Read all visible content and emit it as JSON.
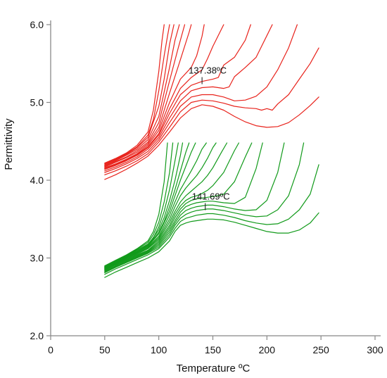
{
  "chart_data": {
    "type": "line",
    "xlabel": "Temperature ºC",
    "ylabel": "Permittivity",
    "xlim": [
      0,
      300
    ],
    "ylim": [
      2.0,
      6.0
    ],
    "xticks": [
      "0",
      "50",
      "100",
      "150",
      "200",
      "250",
      "300"
    ],
    "yticks": [
      "2.0",
      "3.0",
      "4.0",
      "5.0",
      "6.0"
    ],
    "xtick_values": [
      0,
      50,
      100,
      150,
      200,
      250,
      300
    ],
    "ytick_values": [
      2.0,
      3.0,
      4.0,
      5.0,
      6.0
    ],
    "grid": false,
    "legend": "none",
    "colors": {
      "red_family": "#e8221b",
      "green_family": "#119a1a",
      "axis": "#888888"
    },
    "annotations": [
      {
        "text": "137.38ºC",
        "x": 140,
        "y": 5.28
      },
      {
        "text": "141.69ºC",
        "x": 143,
        "y": 3.66
      }
    ],
    "series": [
      {
        "group": "red",
        "color": "#e8221b",
        "x": [
          50,
          60,
          70,
          80,
          90,
          95,
          100,
          103,
          105
        ],
        "y": [
          4.22,
          4.28,
          4.35,
          4.45,
          4.62,
          4.9,
          5.4,
          5.8,
          6.0
        ]
      },
      {
        "group": "red",
        "color": "#e8221b",
        "x": [
          50,
          60,
          70,
          80,
          90,
          95,
          100,
          105,
          108,
          110
        ],
        "y": [
          4.21,
          4.27,
          4.34,
          4.43,
          4.58,
          4.78,
          5.15,
          5.6,
          5.85,
          6.0
        ]
      },
      {
        "group": "red",
        "color": "#e8221b",
        "x": [
          50,
          60,
          70,
          80,
          90,
          100,
          105,
          110,
          114
        ],
        "y": [
          4.2,
          4.26,
          4.33,
          4.42,
          4.55,
          4.95,
          5.3,
          5.75,
          6.0
        ]
      },
      {
        "group": "red",
        "color": "#e8221b",
        "x": [
          50,
          60,
          70,
          80,
          90,
          100,
          110,
          115,
          119
        ],
        "y": [
          4.19,
          4.25,
          4.32,
          4.4,
          4.52,
          4.82,
          5.45,
          5.8,
          6.0
        ]
      },
      {
        "group": "red",
        "color": "#e8221b",
        "x": [
          50,
          60,
          70,
          80,
          90,
          100,
          110,
          118,
          124
        ],
        "y": [
          4.18,
          4.24,
          4.3,
          4.38,
          4.49,
          4.74,
          5.28,
          5.7,
          6.0
        ]
      },
      {
        "group": "red",
        "color": "#e8221b",
        "x": [
          50,
          60,
          70,
          80,
          90,
          100,
          110,
          120,
          128,
          130
        ],
        "y": [
          4.17,
          4.23,
          4.29,
          4.36,
          4.47,
          4.68,
          5.12,
          5.55,
          5.9,
          6.0
        ]
      },
      {
        "group": "red",
        "color": "#e8221b",
        "x": [
          50,
          60,
          70,
          80,
          90,
          100,
          110,
          120,
          130,
          135,
          140,
          142
        ],
        "y": [
          4.16,
          4.21,
          4.27,
          4.34,
          4.45,
          4.64,
          5.0,
          5.3,
          5.45,
          5.6,
          5.85,
          6.0
        ]
      },
      {
        "group": "red",
        "color": "#e8221b",
        "x": [
          50,
          60,
          70,
          80,
          90,
          100,
          110,
          120,
          130,
          140,
          145,
          150,
          160
        ],
        "y": [
          4.15,
          4.2,
          4.26,
          4.33,
          4.43,
          4.6,
          4.92,
          5.18,
          5.32,
          5.42,
          5.56,
          5.72,
          6.0
        ]
      },
      {
        "group": "red",
        "color": "#e8221b",
        "x": [
          50,
          60,
          70,
          80,
          90,
          100,
          110,
          120,
          130,
          140,
          150,
          155,
          160,
          170,
          180,
          185
        ],
        "y": [
          4.14,
          4.19,
          4.25,
          4.32,
          4.42,
          4.58,
          4.86,
          5.1,
          5.22,
          5.27,
          5.3,
          5.32,
          5.48,
          5.58,
          5.8,
          6.0
        ]
      },
      {
        "group": "red",
        "color": "#e8221b",
        "x": [
          50,
          60,
          70,
          80,
          90,
          100,
          110,
          120,
          130,
          140,
          150,
          160,
          165,
          170,
          180,
          190,
          195,
          205
        ],
        "y": [
          4.12,
          4.17,
          4.23,
          4.3,
          4.4,
          4.55,
          4.8,
          5.02,
          5.15,
          5.19,
          5.2,
          5.18,
          5.2,
          5.33,
          5.45,
          5.58,
          5.72,
          6.0
        ]
      },
      {
        "group": "red",
        "color": "#e8221b",
        "x": [
          50,
          60,
          70,
          80,
          90,
          100,
          110,
          120,
          130,
          140,
          150,
          160,
          170,
          180,
          190,
          200,
          210,
          220,
          228
        ],
        "y": [
          4.1,
          4.15,
          4.21,
          4.28,
          4.37,
          4.52,
          4.74,
          4.95,
          5.07,
          5.1,
          5.1,
          5.07,
          5.02,
          5.03,
          5.08,
          5.2,
          5.42,
          5.7,
          6.0
        ]
      },
      {
        "group": "red",
        "color": "#e8221b",
        "x": [
          50,
          60,
          70,
          80,
          90,
          100,
          110,
          120,
          130,
          140,
          150,
          160,
          170,
          180,
          190,
          195,
          200,
          205,
          210,
          220,
          230,
          240,
          248
        ],
        "y": [
          4.07,
          4.12,
          4.18,
          4.25,
          4.34,
          4.49,
          4.68,
          4.88,
          5.0,
          5.03,
          5.02,
          4.99,
          4.95,
          4.93,
          4.92,
          4.9,
          4.92,
          4.9,
          4.98,
          5.1,
          5.3,
          5.5,
          5.7
        ]
      },
      {
        "group": "red",
        "color": "#e8221b",
        "x": [
          50,
          60,
          70,
          80,
          90,
          100,
          110,
          120,
          130,
          140,
          150,
          160,
          170,
          180,
          190,
          200,
          210,
          220,
          230,
          240,
          248
        ],
        "y": [
          4.01,
          4.07,
          4.14,
          4.22,
          4.31,
          4.45,
          4.62,
          4.8,
          4.92,
          4.97,
          4.95,
          4.9,
          4.82,
          4.75,
          4.7,
          4.68,
          4.69,
          4.74,
          4.84,
          4.96,
          5.07
        ]
      },
      {
        "group": "green",
        "color": "#119a1a",
        "x": [
          50,
          60,
          70,
          80,
          90,
          100,
          110,
          115,
          120,
          125,
          130,
          135,
          140,
          145,
          150,
          160,
          170,
          180,
          190,
          200,
          210,
          220,
          230,
          240,
          248
        ],
        "y": [
          2.75,
          2.82,
          2.88,
          2.94,
          3.0,
          3.08,
          3.22,
          3.34,
          3.42,
          3.45,
          3.47,
          3.48,
          3.49,
          3.5,
          3.5,
          3.49,
          3.46,
          3.42,
          3.38,
          3.34,
          3.32,
          3.32,
          3.36,
          3.45,
          3.58
        ]
      },
      {
        "group": "green",
        "color": "#119a1a",
        "x": [
          50,
          60,
          70,
          80,
          90,
          100,
          110,
          115,
          120,
          125,
          130,
          135,
          140,
          145,
          150,
          160,
          170,
          180,
          190,
          200,
          210,
          220,
          230,
          240,
          248
        ],
        "y": [
          2.79,
          2.86,
          2.92,
          2.98,
          3.04,
          3.12,
          3.27,
          3.38,
          3.47,
          3.51,
          3.53,
          3.55,
          3.56,
          3.57,
          3.57,
          3.55,
          3.52,
          3.48,
          3.45,
          3.43,
          3.44,
          3.5,
          3.62,
          3.82,
          4.2
        ]
      },
      {
        "group": "green",
        "color": "#119a1a",
        "x": [
          50,
          60,
          70,
          80,
          90,
          100,
          110,
          115,
          120,
          125,
          130,
          135,
          140,
          145,
          150,
          160,
          170,
          180,
          190,
          200,
          210,
          220,
          230,
          234
        ],
        "y": [
          2.81,
          2.88,
          2.94,
          3.0,
          3.06,
          3.14,
          3.3,
          3.42,
          3.51,
          3.56,
          3.59,
          3.61,
          3.62,
          3.63,
          3.63,
          3.61,
          3.58,
          3.55,
          3.53,
          3.54,
          3.62,
          3.8,
          4.2,
          4.48
        ]
      },
      {
        "group": "green",
        "color": "#119a1a",
        "x": [
          50,
          60,
          70,
          80,
          90,
          100,
          110,
          115,
          120,
          125,
          130,
          135,
          140,
          145,
          150,
          160,
          170,
          180,
          190,
          200,
          210,
          216
        ],
        "y": [
          2.82,
          2.89,
          2.95,
          3.01,
          3.07,
          3.16,
          3.33,
          3.45,
          3.55,
          3.61,
          3.64,
          3.66,
          3.67,
          3.68,
          3.68,
          3.66,
          3.63,
          3.61,
          3.62,
          3.74,
          4.1,
          4.48
        ]
      },
      {
        "group": "green",
        "color": "#119a1a",
        "x": [
          50,
          60,
          70,
          80,
          90,
          100,
          110,
          115,
          120,
          125,
          130,
          135,
          140,
          145,
          150,
          160,
          170,
          180,
          190,
          196
        ],
        "y": [
          2.83,
          2.9,
          2.96,
          3.02,
          3.08,
          3.18,
          3.36,
          3.48,
          3.59,
          3.66,
          3.69,
          3.71,
          3.72,
          3.73,
          3.73,
          3.71,
          3.7,
          3.78,
          4.15,
          4.48
        ]
      },
      {
        "group": "green",
        "color": "#119a1a",
        "x": [
          50,
          60,
          70,
          80,
          90,
          100,
          110,
          115,
          120,
          125,
          130,
          135,
          140,
          145,
          150,
          160,
          170,
          180,
          186
        ],
        "y": [
          2.84,
          2.91,
          2.97,
          3.03,
          3.09,
          3.2,
          3.39,
          3.52,
          3.63,
          3.7,
          3.74,
          3.76,
          3.77,
          3.78,
          3.79,
          3.82,
          3.98,
          4.3,
          4.48
        ]
      },
      {
        "group": "green",
        "color": "#119a1a",
        "x": [
          50,
          60,
          70,
          80,
          90,
          100,
          110,
          115,
          120,
          125,
          130,
          135,
          140,
          145,
          150,
          160,
          170,
          174
        ],
        "y": [
          2.85,
          2.92,
          2.98,
          3.04,
          3.1,
          3.22,
          3.42,
          3.56,
          3.67,
          3.74,
          3.78,
          3.8,
          3.83,
          3.87,
          3.93,
          4.1,
          4.38,
          4.48
        ]
      },
      {
        "group": "green",
        "color": "#119a1a",
        "x": [
          50,
          60,
          70,
          80,
          90,
          100,
          110,
          115,
          120,
          125,
          130,
          135,
          140,
          145,
          150,
          158,
          163
        ],
        "y": [
          2.85,
          2.92,
          2.99,
          3.05,
          3.12,
          3.24,
          3.46,
          3.6,
          3.72,
          3.8,
          3.86,
          3.92,
          3.98,
          4.06,
          4.16,
          4.36,
          4.48
        ]
      },
      {
        "group": "green",
        "color": "#119a1a",
        "x": [
          50,
          60,
          70,
          80,
          90,
          100,
          110,
          115,
          120,
          125,
          130,
          135,
          140,
          145,
          150,
          153
        ],
        "y": [
          2.86,
          2.93,
          3.0,
          3.06,
          3.13,
          3.26,
          3.5,
          3.66,
          3.8,
          3.9,
          3.98,
          4.06,
          4.16,
          4.28,
          4.42,
          4.48
        ]
      },
      {
        "group": "green",
        "color": "#119a1a",
        "x": [
          50,
          60,
          70,
          80,
          90,
          100,
          110,
          115,
          120,
          125,
          130,
          135,
          140,
          144
        ],
        "y": [
          2.86,
          2.93,
          3.0,
          3.07,
          3.14,
          3.28,
          3.55,
          3.72,
          3.88,
          4.0,
          4.12,
          4.25,
          4.4,
          4.48
        ]
      },
      {
        "group": "green",
        "color": "#119a1a",
        "x": [
          50,
          60,
          70,
          80,
          90,
          100,
          110,
          115,
          120,
          125,
          130,
          134
        ],
        "y": [
          2.87,
          2.94,
          3.01,
          3.08,
          3.15,
          3.31,
          3.6,
          3.8,
          4.0,
          4.18,
          4.36,
          4.48
        ]
      },
      {
        "group": "green",
        "color": "#119a1a",
        "x": [
          50,
          60,
          70,
          80,
          90,
          100,
          105,
          110,
          115,
          120,
          125,
          128
        ],
        "y": [
          2.87,
          2.94,
          3.01,
          3.08,
          3.16,
          3.33,
          3.47,
          3.66,
          3.88,
          4.12,
          4.36,
          4.48
        ]
      },
      {
        "group": "green",
        "color": "#119a1a",
        "x": [
          50,
          60,
          70,
          80,
          90,
          100,
          105,
          110,
          115,
          120,
          122
        ],
        "y": [
          2.88,
          2.95,
          3.02,
          3.09,
          3.17,
          3.36,
          3.52,
          3.74,
          4.0,
          4.32,
          4.48
        ]
      },
      {
        "group": "green",
        "color": "#119a1a",
        "x": [
          50,
          60,
          70,
          80,
          90,
          95,
          100,
          105,
          110,
          115,
          118
        ],
        "y": [
          2.88,
          2.95,
          3.02,
          3.1,
          3.18,
          3.26,
          3.4,
          3.6,
          3.88,
          4.25,
          4.48
        ]
      },
      {
        "group": "green",
        "color": "#119a1a",
        "x": [
          50,
          60,
          70,
          80,
          90,
          95,
          100,
          105,
          110,
          113
        ],
        "y": [
          2.89,
          2.96,
          3.03,
          3.11,
          3.2,
          3.3,
          3.46,
          3.72,
          4.1,
          4.48
        ]
      },
      {
        "group": "green",
        "color": "#119a1a",
        "x": [
          50,
          60,
          70,
          80,
          90,
          95,
          100,
          105,
          108
        ],
        "y": [
          2.9,
          2.97,
          3.04,
          3.12,
          3.22,
          3.34,
          3.56,
          3.98,
          4.48
        ]
      }
    ]
  }
}
